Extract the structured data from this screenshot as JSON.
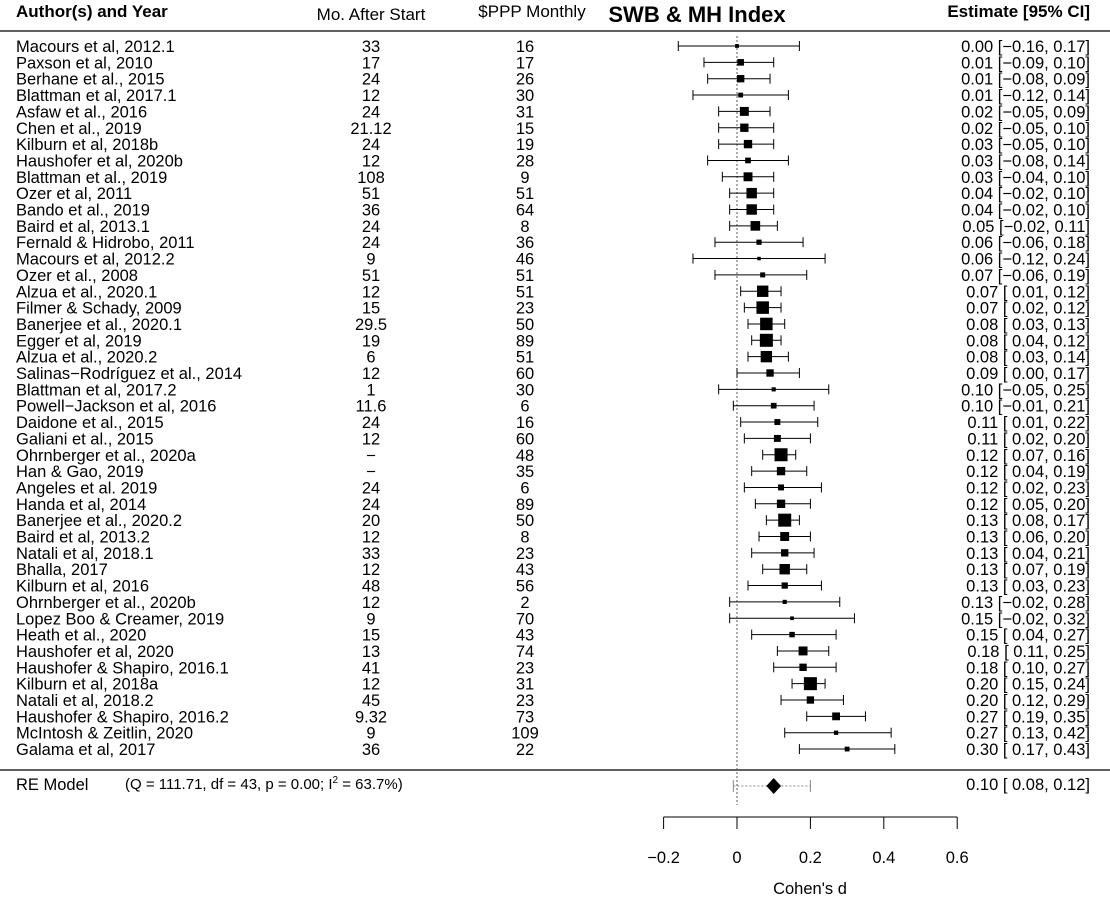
{
  "headers": {
    "study": "Author(s) and Year",
    "months": "Mo. After Start",
    "ppp": "$PPP Monthly",
    "estimate": "Estimate [95% CI]"
  },
  "chart_data": {
    "type": "forest",
    "title": "SWB & MH Index",
    "xlabel": "Cohen's d",
    "xlim": [
      -0.2,
      0.6
    ],
    "xticks": [
      -0.2,
      0,
      0.2,
      0.4,
      0.6
    ],
    "xtick_labels": [
      "−0.2",
      "0",
      "0.2",
      "0.4",
      "0.6"
    ],
    "rows": [
      {
        "study": "Macours et al, 2012.1",
        "months": "33",
        "ppp": "16",
        "est": 0.0,
        "lo": -0.16,
        "hi": 0.17,
        "ci_text": "0.00 [−0.16, 0.17]"
      },
      {
        "study": "Paxson et al, 2010",
        "months": "17",
        "ppp": "17",
        "est": 0.01,
        "lo": -0.09,
        "hi": 0.1,
        "ci_text": "0.01 [−0.09, 0.10]"
      },
      {
        "study": "Berhane et al., 2015",
        "months": "24",
        "ppp": "26",
        "est": 0.01,
        "lo": -0.08,
        "hi": 0.09,
        "ci_text": "0.01 [−0.08, 0.09]"
      },
      {
        "study": "Blattman et al, 2017.1",
        "months": "12",
        "ppp": "30",
        "est": 0.01,
        "lo": -0.12,
        "hi": 0.14,
        "ci_text": "0.01 [−0.12, 0.14]"
      },
      {
        "study": "Asfaw et al., 2016",
        "months": "24",
        "ppp": "31",
        "est": 0.02,
        "lo": -0.05,
        "hi": 0.09,
        "ci_text": "0.02 [−0.05, 0.09]"
      },
      {
        "study": "Chen  et al., 2019",
        "months": "21.12",
        "ppp": "15",
        "est": 0.02,
        "lo": -0.05,
        "hi": 0.1,
        "ci_text": "0.02 [−0.05, 0.10]"
      },
      {
        "study": "Kilburn et al, 2018b",
        "months": "24",
        "ppp": "19",
        "est": 0.03,
        "lo": -0.05,
        "hi": 0.1,
        "ci_text": "0.03 [−0.05, 0.10]"
      },
      {
        "study": "Haushofer et al, 2020b",
        "months": "12",
        "ppp": "28",
        "est": 0.03,
        "lo": -0.08,
        "hi": 0.14,
        "ci_text": "0.03 [−0.08, 0.14]"
      },
      {
        "study": "Blattman et al., 2019",
        "months": "108",
        "ppp": "9",
        "est": 0.03,
        "lo": -0.04,
        "hi": 0.1,
        "ci_text": "0.03 [−0.04, 0.10]"
      },
      {
        "study": "Ozer et al, 2011",
        "months": "51",
        "ppp": "51",
        "est": 0.04,
        "lo": -0.02,
        "hi": 0.1,
        "ci_text": "0.04 [−0.02, 0.10]"
      },
      {
        "study": "Bando et al., 2019",
        "months": "36",
        "ppp": "64",
        "est": 0.04,
        "lo": -0.02,
        "hi": 0.1,
        "ci_text": "0.04 [−0.02, 0.10]"
      },
      {
        "study": "Baird et al, 2013.1",
        "months": "24",
        "ppp": "8",
        "est": 0.05,
        "lo": -0.02,
        "hi": 0.11,
        "ci_text": "0.05 [−0.02, 0.11]"
      },
      {
        "study": "Fernald & Hidrobo, 2011",
        "months": "24",
        "ppp": "36",
        "est": 0.06,
        "lo": -0.06,
        "hi": 0.18,
        "ci_text": "0.06 [−0.06, 0.18]"
      },
      {
        "study": "Macours et al, 2012.2",
        "months": "9",
        "ppp": "46",
        "est": 0.06,
        "lo": -0.12,
        "hi": 0.24,
        "ci_text": "0.06 [−0.12, 0.24]"
      },
      {
        "study": "Ozer et al., 2008",
        "months": "51",
        "ppp": "51",
        "est": 0.07,
        "lo": -0.06,
        "hi": 0.19,
        "ci_text": "0.07 [−0.06, 0.19]"
      },
      {
        "study": "Alzua et al., 2020.1",
        "months": "12",
        "ppp": "51",
        "est": 0.07,
        "lo": 0.01,
        "hi": 0.12,
        "ci_text": "0.07 [ 0.01, 0.12]"
      },
      {
        "study": "Filmer & Schady, 2009",
        "months": "15",
        "ppp": "23",
        "est": 0.07,
        "lo": 0.02,
        "hi": 0.12,
        "ci_text": "0.07 [ 0.02, 0.12]"
      },
      {
        "study": "Banerjee et al., 2020.1",
        "months": "29.5",
        "ppp": "50",
        "est": 0.08,
        "lo": 0.03,
        "hi": 0.13,
        "ci_text": "0.08 [ 0.03, 0.13]"
      },
      {
        "study": "Egger et al, 2019",
        "months": "19",
        "ppp": "89",
        "est": 0.08,
        "lo": 0.04,
        "hi": 0.12,
        "ci_text": "0.08 [ 0.04, 0.12]"
      },
      {
        "study": "Alzua et al., 2020.2",
        "months": "6",
        "ppp": "51",
        "est": 0.08,
        "lo": 0.03,
        "hi": 0.14,
        "ci_text": "0.08 [ 0.03, 0.14]"
      },
      {
        "study": "Salinas−Rodríguez et al., 2014",
        "months": "12",
        "ppp": "60",
        "est": 0.09,
        "lo": 0.0,
        "hi": 0.17,
        "ci_text": "0.09 [ 0.00, 0.17]"
      },
      {
        "study": "Blattman et al, 2017.2",
        "months": "1",
        "ppp": "30",
        "est": 0.1,
        "lo": -0.05,
        "hi": 0.25,
        "ci_text": "0.10 [−0.05, 0.25]"
      },
      {
        "study": "Powell−Jackson et al, 2016",
        "months": "11.6",
        "ppp": "6",
        "est": 0.1,
        "lo": -0.01,
        "hi": 0.21,
        "ci_text": "0.10 [−0.01, 0.21]"
      },
      {
        "study": "Daidone et al., 2015",
        "months": "24",
        "ppp": "16",
        "est": 0.11,
        "lo": 0.01,
        "hi": 0.22,
        "ci_text": "0.11 [ 0.01, 0.22]"
      },
      {
        "study": "Galiani et al., 2015",
        "months": "12",
        "ppp": "60",
        "est": 0.11,
        "lo": 0.02,
        "hi": 0.2,
        "ci_text": "0.11 [ 0.02, 0.20]"
      },
      {
        "study": "Ohrnberger et al., 2020a",
        "months": "−",
        "ppp": "48",
        "est": 0.12,
        "lo": 0.07,
        "hi": 0.16,
        "ci_text": "0.12 [ 0.07, 0.16]"
      },
      {
        "study": "Han & Gao, 2019",
        "months": "−",
        "ppp": "35",
        "est": 0.12,
        "lo": 0.04,
        "hi": 0.19,
        "ci_text": "0.12 [ 0.04, 0.19]"
      },
      {
        "study": "Angeles et al. 2019",
        "months": "24",
        "ppp": "6",
        "est": 0.12,
        "lo": 0.02,
        "hi": 0.23,
        "ci_text": "0.12 [ 0.02, 0.23]"
      },
      {
        "study": "Handa et al, 2014",
        "months": "24",
        "ppp": "89",
        "est": 0.12,
        "lo": 0.05,
        "hi": 0.2,
        "ci_text": "0.12 [ 0.05, 0.20]"
      },
      {
        "study": "Banerjee et al., 2020.2",
        "months": "20",
        "ppp": "50",
        "est": 0.13,
        "lo": 0.08,
        "hi": 0.17,
        "ci_text": "0.13 [ 0.08, 0.17]"
      },
      {
        "study": "Baird et al, 2013.2",
        "months": "12",
        "ppp": "8",
        "est": 0.13,
        "lo": 0.06,
        "hi": 0.2,
        "ci_text": "0.13 [ 0.06, 0.20]"
      },
      {
        "study": "Natali et al, 2018.1",
        "months": "33",
        "ppp": "23",
        "est": 0.13,
        "lo": 0.04,
        "hi": 0.21,
        "ci_text": "0.13 [ 0.04, 0.21]"
      },
      {
        "study": "Bhalla, 2017",
        "months": "12",
        "ppp": "43",
        "est": 0.13,
        "lo": 0.07,
        "hi": 0.19,
        "ci_text": "0.13 [ 0.07, 0.19]"
      },
      {
        "study": "Kilburn et al, 2016",
        "months": "48",
        "ppp": "56",
        "est": 0.13,
        "lo": 0.03,
        "hi": 0.23,
        "ci_text": "0.13 [ 0.03, 0.23]"
      },
      {
        "study": "Ohrnberger et al., 2020b",
        "months": "12",
        "ppp": "2",
        "est": 0.13,
        "lo": -0.02,
        "hi": 0.28,
        "ci_text": "0.13 [−0.02, 0.28]"
      },
      {
        "study": "Lopez Boo & Creamer, 2019",
        "months": "9",
        "ppp": "70",
        "est": 0.15,
        "lo": -0.02,
        "hi": 0.32,
        "ci_text": "0.15 [−0.02, 0.32]"
      },
      {
        "study": "Heath et al., 2020",
        "months": "15",
        "ppp": "43",
        "est": 0.15,
        "lo": 0.04,
        "hi": 0.27,
        "ci_text": "0.15 [ 0.04, 0.27]"
      },
      {
        "study": "Haushofer et al, 2020",
        "months": "13",
        "ppp": "74",
        "est": 0.18,
        "lo": 0.11,
        "hi": 0.25,
        "ci_text": "0.18 [ 0.11, 0.25]"
      },
      {
        "study": "Haushofer & Shapiro, 2016.1",
        "months": "41",
        "ppp": "23",
        "est": 0.18,
        "lo": 0.1,
        "hi": 0.27,
        "ci_text": "0.18 [ 0.10, 0.27]"
      },
      {
        "study": "Kilburn et al, 2018a",
        "months": "12",
        "ppp": "31",
        "est": 0.2,
        "lo": 0.15,
        "hi": 0.24,
        "ci_text": "0.20 [ 0.15, 0.24]"
      },
      {
        "study": "Natali et al, 2018.2",
        "months": "45",
        "ppp": "23",
        "est": 0.2,
        "lo": 0.12,
        "hi": 0.29,
        "ci_text": "0.20 [ 0.12, 0.29]"
      },
      {
        "study": "Haushofer & Shapiro, 2016.2",
        "months": "9.32",
        "ppp": "73",
        "est": 0.27,
        "lo": 0.19,
        "hi": 0.35,
        "ci_text": "0.27 [ 0.19, 0.35]"
      },
      {
        "study": "McIntosh & Zeitlin, 2020",
        "months": "9",
        "ppp": "109",
        "est": 0.27,
        "lo": 0.13,
        "hi": 0.42,
        "ci_text": "0.27 [ 0.13, 0.42]"
      },
      {
        "study": "Galama et al, 2017",
        "months": "36",
        "ppp": "22",
        "est": 0.3,
        "lo": 0.17,
        "hi": 0.43,
        "ci_text": "0.30 [ 0.17, 0.43]"
      }
    ],
    "summary": {
      "label": "RE Model",
      "stats_pre": "(Q = 111.71, df = 43, p = 0.00; I",
      "stats_sup": "2",
      "stats_post": " = 63.7%)",
      "est": 0.1,
      "lo": 0.08,
      "hi": 0.12,
      "pi_lo": -0.01,
      "pi_hi": 0.2,
      "ci_text": "0.10 [ 0.08, 0.12]"
    },
    "colors": {
      "marker": "#000000",
      "reference_line": "#555555",
      "prediction_interval": "#888888"
    }
  }
}
